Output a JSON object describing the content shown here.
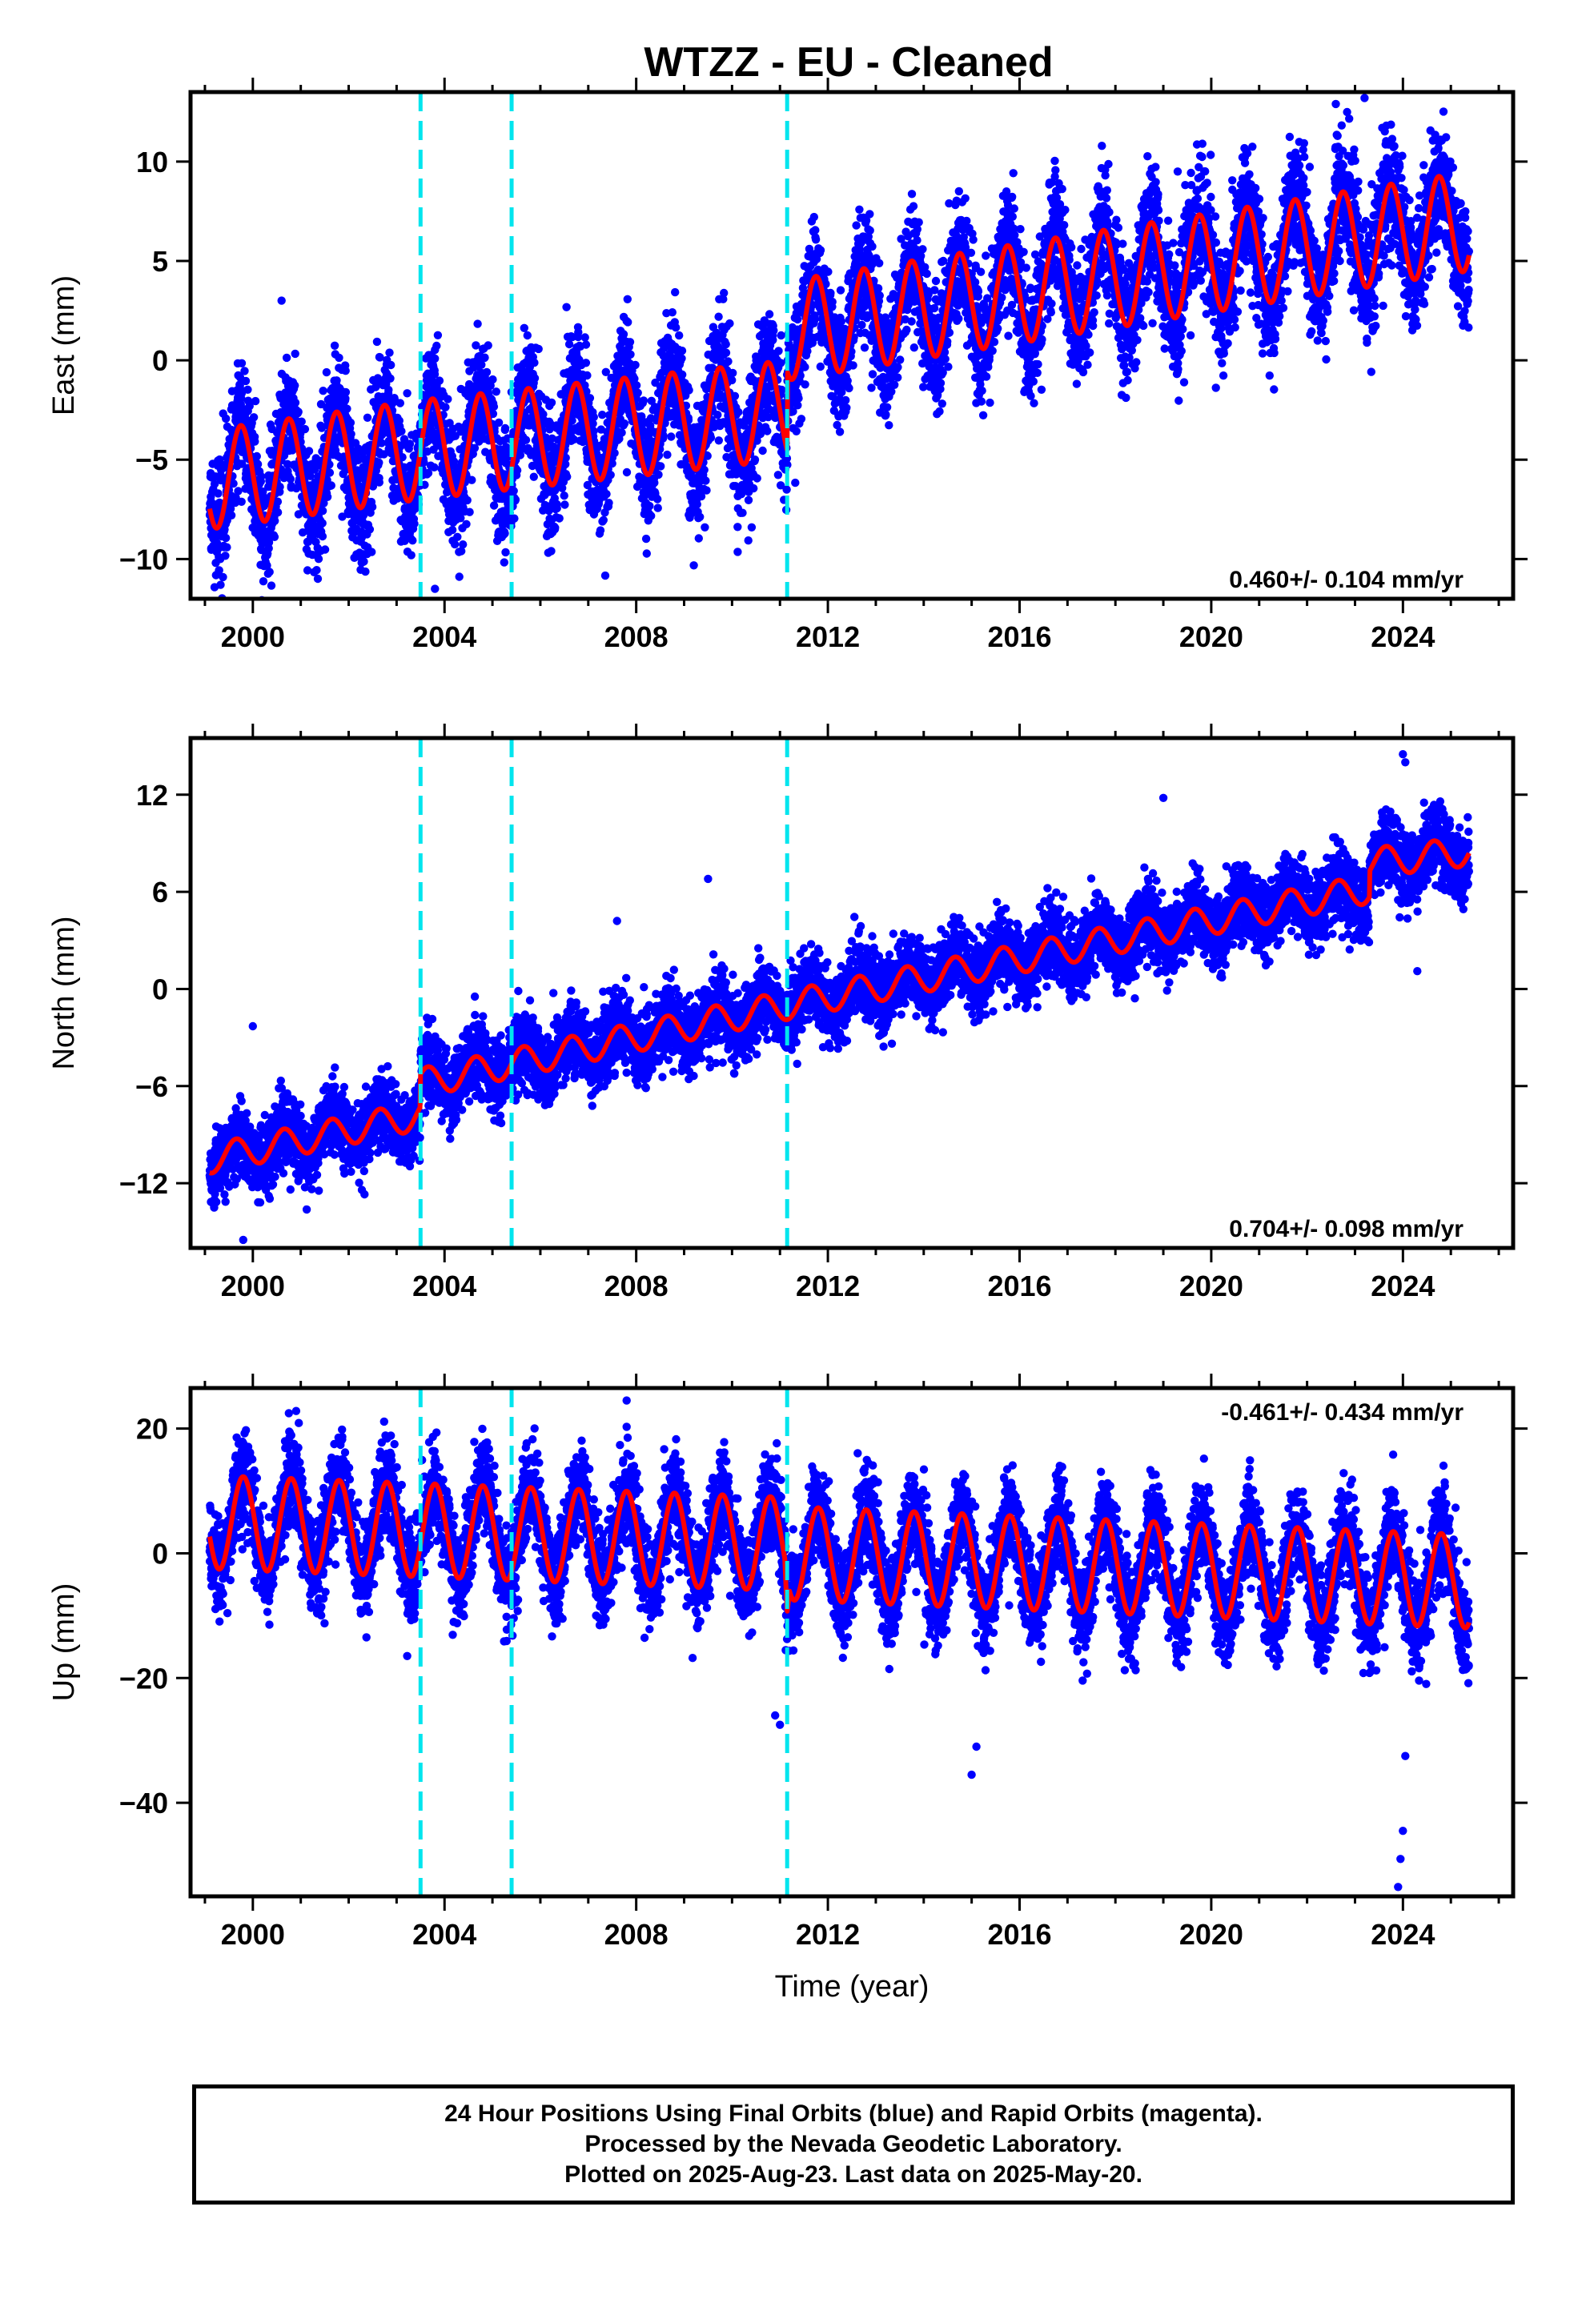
{
  "title": "WTZZ  - EU - Cleaned",
  "colors": {
    "data": "#0000ff",
    "model": "#ff0000",
    "steps": "#00e5ee",
    "frame": "#000000"
  },
  "footer": {
    "line1": "24 Hour Positions Using Final Orbits (blue) and Rapid Orbits (magenta).",
    "line2": "Processed by the Nevada Geodetic Laboratory.",
    "line3": "Plotted on 2025-Aug-23. Last data on 2025-May-20."
  },
  "chart_data": [
    {
      "type": "scatter",
      "ylabel": "East (mm)",
      "xlabel": "",
      "rate": "0.460+/- 0.104 mm/yr",
      "xlim": [
        1998.7,
        2026.3
      ],
      "ylim": [
        -12,
        13.5
      ],
      "xticks": [
        "2000",
        "2004",
        "2008",
        "2012",
        "2016",
        "2020",
        "2024"
      ],
      "yticks": [
        -10,
        -5,
        0,
        5,
        10
      ],
      "ytick_labels": [
        "−10",
        "−5",
        "0",
        "5",
        "10"
      ],
      "steps": [
        2003.5,
        2005.4,
        2011.15
      ],
      "data_range": [
        1999.1,
        2025.38
      ],
      "model": {
        "anchors": [
          [
            1999.1,
            -6.0
          ],
          [
            2003.5,
            -4.5
          ],
          [
            2011.15,
            -2.5
          ],
          [
            2011.16,
            1.5
          ],
          [
            2025.38,
            7.0
          ]
        ],
        "annual_amplitude": 2.5,
        "annual_phase": 0.5,
        "scatter_sd": 1.5
      },
      "outliers": [
        [
          2000.6,
          3.0
        ],
        [
          2022.6,
          12.9
        ],
        [
          2023.2,
          13.2
        ],
        [
          2003.8,
          -11.5
        ],
        [
          2019.3,
          9.5
        ]
      ]
    },
    {
      "type": "scatter",
      "ylabel": "North (mm)",
      "xlabel": "",
      "rate": "0.704+/- 0.098 mm/yr",
      "xlim": [
        1998.7,
        2026.3
      ],
      "ylim": [
        -16,
        15.5
      ],
      "xticks": [
        "2000",
        "2004",
        "2008",
        "2012",
        "2016",
        "2020",
        "2024"
      ],
      "yticks": [
        -12,
        -6,
        0,
        6,
        12
      ],
      "ytick_labels": [
        "−12",
        "−6",
        "0",
        "6",
        "12"
      ],
      "steps": [
        2003.5,
        2005.4,
        2011.15
      ],
      "data_range": [
        1999.1,
        2025.38
      ],
      "model": {
        "anchors": [
          [
            1999.1,
            -10.5
          ],
          [
            2003.49,
            -7.8
          ],
          [
            2003.5,
            -5.8
          ],
          [
            2011.15,
            -1.0
          ],
          [
            2023.3,
            6.2
          ],
          [
            2023.31,
            7.8
          ],
          [
            2025.38,
            8.5
          ]
        ],
        "annual_amplitude": 0.9,
        "annual_phase": 0.4,
        "scatter_sd": 1.1
      },
      "outliers": [
        [
          2000.0,
          -2.3
        ],
        [
          2009.5,
          6.8
        ],
        [
          2019.0,
          11.8
        ],
        [
          2024.0,
          14.5
        ],
        [
          2024.05,
          14.0
        ],
        [
          2024.3,
          1.1
        ],
        [
          1999.8,
          -15.5
        ],
        [
          2007.6,
          4.2
        ]
      ]
    },
    {
      "type": "scatter",
      "ylabel": "Up (mm)",
      "xlabel": "Time (year)",
      "rate": "-0.461+/- 0.434 mm/yr",
      "xlim": [
        1998.7,
        2026.3
      ],
      "ylim": [
        -55,
        26.5
      ],
      "xticks": [
        "2000",
        "2004",
        "2008",
        "2012",
        "2016",
        "2020",
        "2024"
      ],
      "yticks": [
        -40,
        -20,
        0,
        20
      ],
      "ytick_labels": [
        "−40",
        "−20",
        "0",
        "20"
      ],
      "steps": [
        2003.5,
        2005.4,
        2011.15
      ],
      "data_range": [
        1999.1,
        2025.38
      ],
      "model": {
        "anchors": [
          [
            1999.1,
            5.0
          ],
          [
            2011.1,
            1.5
          ],
          [
            2011.15,
            -5.0
          ],
          [
            2011.2,
            0.0
          ],
          [
            2025.38,
            -4.5
          ]
        ],
        "annual_amplitude": 7.5,
        "annual_phase": 0.55,
        "scatter_sd": 3.8
      },
      "outliers": [
        [
          2007.8,
          24.5
        ],
        [
          2015.0,
          -35.5
        ],
        [
          2015.1,
          -31
        ],
        [
          2023.9,
          -53.5
        ],
        [
          2023.95,
          -49
        ],
        [
          2024.0,
          -44.5
        ],
        [
          2024.05,
          -32.5
        ],
        [
          2010.9,
          -26.0
        ],
        [
          2011.0,
          -27.5
        ]
      ]
    }
  ]
}
